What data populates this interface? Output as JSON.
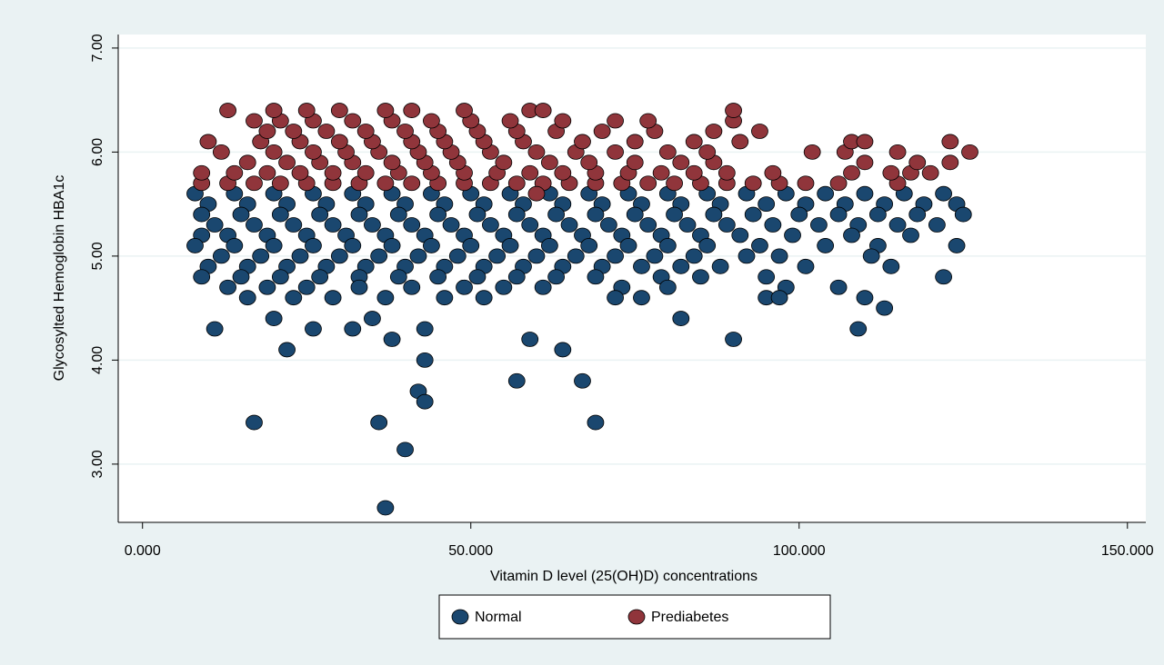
{
  "chart_data": {
    "type": "scatter",
    "xlabel": "Vitamin D level (25(OH)D) concentrations",
    "ylabel": "Glycosylted Hemoglobin  HBA1c",
    "xlim": [
      -3.7,
      152.8
    ],
    "ylim": [
      2.44,
      7.13
    ],
    "xticks": [
      {
        "value": 0,
        "label": "0.000"
      },
      {
        "value": 50,
        "label": "50.000"
      },
      {
        "value": 100,
        "label": "100.000"
      },
      {
        "value": 150,
        "label": "150.000"
      }
    ],
    "yticks": [
      {
        "value": 3,
        "label": "3.00"
      },
      {
        "value": 4,
        "label": "4.00"
      },
      {
        "value": 5,
        "label": "5.00"
      },
      {
        "value": 6,
        "label": "6.00"
      },
      {
        "value": 7,
        "label": "7.00"
      }
    ],
    "grid": true,
    "legend": "bottom",
    "series": [
      {
        "name": "Normal",
        "color": "#1a476f",
        "x": [
          8,
          14,
          20,
          26,
          32,
          38,
          44,
          50,
          56,
          62,
          68,
          74,
          80,
          86,
          92,
          98,
          104,
          110,
          116,
          122,
          10,
          16,
          22,
          28,
          34,
          40,
          46,
          52,
          58,
          64,
          70,
          76,
          82,
          88,
          95,
          101,
          107,
          113,
          119,
          124,
          9,
          15,
          21,
          27,
          33,
          39,
          45,
          51,
          57,
          63,
          69,
          75,
          81,
          87,
          93,
          100,
          106,
          112,
          118,
          125,
          11,
          17,
          23,
          29,
          35,
          41,
          47,
          53,
          59,
          65,
          71,
          77,
          83,
          89,
          96,
          103,
          109,
          115,
          121,
          9,
          13,
          19,
          25,
          31,
          37,
          43,
          49,
          55,
          61,
          67,
          73,
          79,
          85,
          91,
          99,
          108,
          117,
          8,
          14,
          20,
          26,
          32,
          38,
          44,
          50,
          56,
          62,
          68,
          74,
          80,
          86,
          94,
          104,
          112,
          124,
          12,
          18,
          24,
          30,
          36,
          42,
          48,
          54,
          60,
          66,
          72,
          78,
          84,
          92,
          97,
          111,
          10,
          16,
          22,
          28,
          34,
          40,
          46,
          52,
          58,
          64,
          70,
          76,
          82,
          88,
          101,
          114,
          9,
          15,
          21,
          27,
          33,
          39,
          45,
          51,
          57,
          63,
          69,
          79,
          85,
          95,
          122,
          13,
          19,
          25,
          33,
          41,
          49,
          55,
          61,
          73,
          80,
          98,
          106,
          16,
          23,
          29,
          37,
          46,
          52,
          72,
          76,
          95,
          97,
          110,
          11,
          17,
          22,
          20,
          36,
          37,
          40,
          42,
          43,
          43,
          43,
          38,
          57,
          59,
          64,
          67,
          69,
          90,
          109,
          82,
          113,
          35,
          26,
          32
        ],
        "values": [
          5.6,
          5.6,
          5.6,
          5.6,
          5.6,
          5.6,
          5.6,
          5.6,
          5.6,
          5.6,
          5.6,
          5.6,
          5.6,
          5.6,
          5.6,
          5.6,
          5.6,
          5.6,
          5.6,
          5.6,
          5.5,
          5.5,
          5.5,
          5.5,
          5.5,
          5.5,
          5.5,
          5.5,
          5.5,
          5.5,
          5.5,
          5.5,
          5.5,
          5.5,
          5.5,
          5.5,
          5.5,
          5.5,
          5.5,
          5.5,
          5.4,
          5.4,
          5.4,
          5.4,
          5.4,
          5.4,
          5.4,
          5.4,
          5.4,
          5.4,
          5.4,
          5.4,
          5.4,
          5.4,
          5.4,
          5.4,
          5.4,
          5.4,
          5.4,
          5.4,
          5.3,
          5.3,
          5.3,
          5.3,
          5.3,
          5.3,
          5.3,
          5.3,
          5.3,
          5.3,
          5.3,
          5.3,
          5.3,
          5.3,
          5.3,
          5.3,
          5.3,
          5.3,
          5.3,
          5.2,
          5.2,
          5.2,
          5.2,
          5.2,
          5.2,
          5.2,
          5.2,
          5.2,
          5.2,
          5.2,
          5.2,
          5.2,
          5.2,
          5.2,
          5.2,
          5.2,
          5.2,
          5.1,
          5.1,
          5.1,
          5.1,
          5.1,
          5.1,
          5.1,
          5.1,
          5.1,
          5.1,
          5.1,
          5.1,
          5.1,
          5.1,
          5.1,
          5.1,
          5.1,
          5.1,
          5.0,
          5.0,
          5.0,
          5.0,
          5.0,
          5.0,
          5.0,
          5.0,
          5.0,
          5.0,
          5.0,
          5.0,
          5.0,
          5.0,
          5.0,
          5.0,
          4.9,
          4.9,
          4.9,
          4.9,
          4.9,
          4.9,
          4.9,
          4.9,
          4.9,
          4.9,
          4.9,
          4.9,
          4.9,
          4.9,
          4.9,
          4.9,
          4.8,
          4.8,
          4.8,
          4.8,
          4.8,
          4.8,
          4.8,
          4.8,
          4.8,
          4.8,
          4.8,
          4.8,
          4.8,
          4.8,
          4.8,
          4.7,
          4.7,
          4.7,
          4.7,
          4.7,
          4.7,
          4.7,
          4.7,
          4.7,
          4.7,
          4.7,
          4.7,
          4.6,
          4.6,
          4.6,
          4.6,
          4.6,
          4.6,
          4.6,
          4.6,
          4.6,
          4.6,
          4.6,
          4.3,
          3.4,
          4.1,
          4.4,
          3.4,
          2.58,
          3.14,
          3.7,
          3.6,
          4.0,
          4.3,
          4.2,
          3.8,
          4.2,
          4.1,
          3.8,
          3.4,
          4.2,
          4.3,
          4.4,
          4.5,
          4.4,
          4.3,
          4.3
        ]
      },
      {
        "name": "Prediabetes",
        "color": "#90353b",
        "x": [
          9,
          13,
          17,
          21,
          25,
          29,
          33,
          37,
          41,
          45,
          49,
          53,
          57,
          61,
          65,
          69,
          73,
          77,
          81,
          85,
          89,
          93,
          97,
          101,
          106,
          115,
          9,
          14,
          19,
          24,
          29,
          34,
          39,
          44,
          49,
          54,
          59,
          64,
          69,
          74,
          79,
          84,
          89,
          96,
          108,
          114,
          117,
          120,
          16,
          22,
          27,
          32,
          38,
          43,
          48,
          55,
          62,
          68,
          75,
          82,
          87,
          110,
          118,
          123,
          12,
          20,
          26,
          31,
          36,
          42,
          47,
          53,
          60,
          66,
          72,
          80,
          86,
          102,
          107,
          115,
          126,
          10,
          18,
          24,
          30,
          35,
          41,
          46,
          52,
          58,
          67,
          75,
          84,
          91,
          108,
          110,
          123,
          19,
          23,
          28,
          34,
          40,
          45,
          51,
          57,
          63,
          70,
          78,
          87,
          94,
          17,
          21,
          26,
          32,
          38,
          44,
          50,
          56,
          64,
          72,
          77,
          90,
          13,
          20,
          25,
          30,
          37,
          41,
          49,
          59,
          61,
          90,
          60
        ],
        "values": [
          5.7,
          5.7,
          5.7,
          5.7,
          5.7,
          5.7,
          5.7,
          5.7,
          5.7,
          5.7,
          5.7,
          5.7,
          5.7,
          5.7,
          5.7,
          5.7,
          5.7,
          5.7,
          5.7,
          5.7,
          5.7,
          5.7,
          5.7,
          5.7,
          5.7,
          5.7,
          5.8,
          5.8,
          5.8,
          5.8,
          5.8,
          5.8,
          5.8,
          5.8,
          5.8,
          5.8,
          5.8,
          5.8,
          5.8,
          5.8,
          5.8,
          5.8,
          5.8,
          5.8,
          5.8,
          5.8,
          5.8,
          5.8,
          5.9,
          5.9,
          5.9,
          5.9,
          5.9,
          5.9,
          5.9,
          5.9,
          5.9,
          5.9,
          5.9,
          5.9,
          5.9,
          5.9,
          5.9,
          5.9,
          6.0,
          6.0,
          6.0,
          6.0,
          6.0,
          6.0,
          6.0,
          6.0,
          6.0,
          6.0,
          6.0,
          6.0,
          6.0,
          6.0,
          6.0,
          6.0,
          6.0,
          6.1,
          6.1,
          6.1,
          6.1,
          6.1,
          6.1,
          6.1,
          6.1,
          6.1,
          6.1,
          6.1,
          6.1,
          6.1,
          6.1,
          6.1,
          6.1,
          6.2,
          6.2,
          6.2,
          6.2,
          6.2,
          6.2,
          6.2,
          6.2,
          6.2,
          6.2,
          6.2,
          6.2,
          6.2,
          6.3,
          6.3,
          6.3,
          6.3,
          6.3,
          6.3,
          6.3,
          6.3,
          6.3,
          6.3,
          6.3,
          6.3,
          6.4,
          6.4,
          6.4,
          6.4,
          6.4,
          6.4,
          6.4,
          6.4,
          6.4,
          6.4,
          5.6
        ]
      }
    ]
  }
}
